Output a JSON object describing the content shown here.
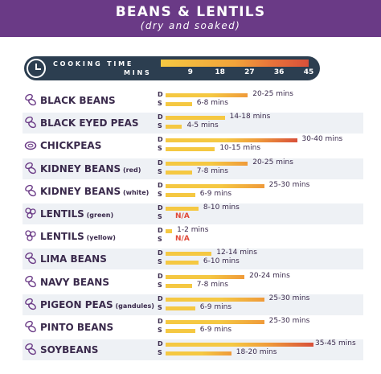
{
  "header": {
    "title": "BEANS & LENTILS",
    "subtitle": "(dry and soaked)",
    "color": "#6a3a86"
  },
  "legend": {
    "label_top": "COOKING TIME",
    "label_bottom": "MINS",
    "ticks": [
      "9",
      "18",
      "27",
      "36",
      "45"
    ],
    "icon": "clock-icon"
  },
  "colors": {
    "yellow": "#f5c842",
    "orange": "#ef9a3a",
    "red": "#d8503a",
    "na": "#e04a3a",
    "text": "#3a2a4c"
  },
  "chart_data": {
    "type": "bar",
    "xlabel": "MINS",
    "xlim": [
      0,
      45
    ],
    "series_labels": [
      "D",
      "S"
    ],
    "categories": [
      {
        "name": "BLACK BEANS",
        "sub": "",
        "icon": "bean-icon",
        "dry": [
          20,
          25
        ],
        "dry_label": "20-25 mins",
        "soaked": [
          6,
          8
        ],
        "soaked_label": "6-8 mins"
      },
      {
        "name": "BLACK EYED PEAS",
        "sub": "",
        "icon": "bean-icon",
        "dry": [
          14,
          18
        ],
        "dry_label": "14-18 mins",
        "soaked": [
          4,
          5
        ],
        "soaked_label": "4-5 mins"
      },
      {
        "name": "CHICKPEAS",
        "sub": "",
        "icon": "chickpea-icon",
        "dry": [
          30,
          40
        ],
        "dry_label": "30-40 mins",
        "soaked": [
          10,
          15
        ],
        "soaked_label": "10-15 mins"
      },
      {
        "name": "KIDNEY BEANS",
        "sub": "(red)",
        "icon": "bean-icon",
        "dry": [
          20,
          25
        ],
        "dry_label": "20-25 mins",
        "soaked": [
          7,
          8
        ],
        "soaked_label": "7-8 mins"
      },
      {
        "name": "KIDNEY BEANS",
        "sub": "(white)",
        "icon": "bean-icon",
        "dry": [
          25,
          30
        ],
        "dry_label": "25-30 mins",
        "soaked": [
          6,
          9
        ],
        "soaked_label": "6-9 mins"
      },
      {
        "name": "LENTILS",
        "sub": "(green)",
        "icon": "lentil-icon",
        "dry": [
          8,
          10
        ],
        "dry_label": "8-10 mins",
        "soaked": null,
        "soaked_label": "N/A"
      },
      {
        "name": "LENTILS",
        "sub": "(yellow)",
        "icon": "lentil-icon",
        "dry": [
          1,
          2
        ],
        "dry_label": "1-2 mins",
        "soaked": null,
        "soaked_label": "N/A"
      },
      {
        "name": "LIMA BEANS",
        "sub": "",
        "icon": "bean-icon",
        "dry": [
          12,
          14
        ],
        "dry_label": "12-14 mins",
        "soaked": [
          6,
          10
        ],
        "soaked_label": "6-10 mins"
      },
      {
        "name": "NAVY BEANS",
        "sub": "",
        "icon": "bean-icon",
        "dry": [
          20,
          24
        ],
        "dry_label": "20-24 mins",
        "soaked": [
          7,
          8
        ],
        "soaked_label": "7-8 mins"
      },
      {
        "name": "PIGEON PEAS",
        "sub": "(gandules)",
        "icon": "bean-icon",
        "dry": [
          25,
          30
        ],
        "dry_label": "25-30 mins",
        "soaked": [
          6,
          9
        ],
        "soaked_label": "6-9 mins"
      },
      {
        "name": "PINTO BEANS",
        "sub": "",
        "icon": "bean-icon",
        "dry": [
          25,
          30
        ],
        "dry_label": "25-30 mins",
        "soaked": [
          6,
          9
        ],
        "soaked_label": "6-9 mins"
      },
      {
        "name": "SOYBEANS",
        "sub": "",
        "icon": "bean-icon",
        "dry": [
          35,
          45
        ],
        "dry_label": "35-45 mins",
        "soaked": [
          18,
          20
        ],
        "soaked_label": "18-20 mins"
      }
    ]
  }
}
